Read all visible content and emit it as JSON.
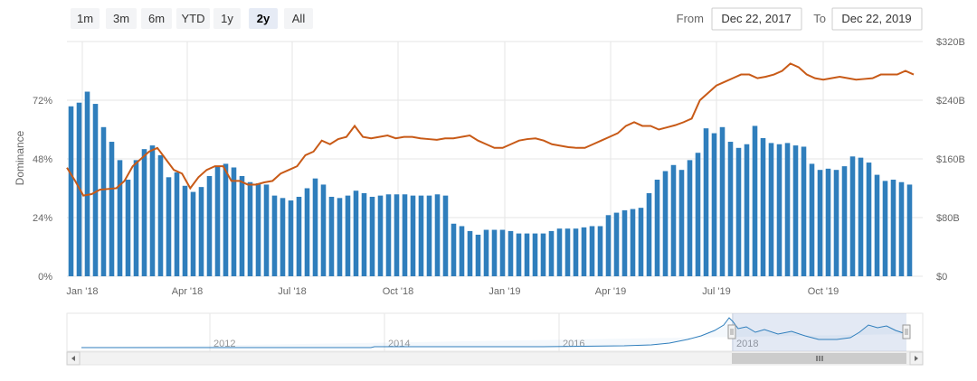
{
  "range_selector": {
    "buttons": [
      {
        "label": "1m",
        "active": false
      },
      {
        "label": "3m",
        "active": false
      },
      {
        "label": "6m",
        "active": false
      },
      {
        "label": "YTD",
        "active": false
      },
      {
        "label": "1y",
        "active": false
      },
      {
        "label": "2y",
        "active": true
      },
      {
        "label": "All",
        "active": false
      }
    ],
    "from_label": "From",
    "from_value": "Dec 22, 2017",
    "to_label": "To",
    "to_value": "Dec 22, 2019"
  },
  "chart_data": {
    "type": "bar",
    "ylabel": "Dominance",
    "x_ticks": [
      "Jan '18",
      "Apr '18",
      "Jul '18",
      "Oct '18",
      "Jan '19",
      "Apr '19",
      "Jul '19",
      "Oct '19"
    ],
    "y_left_ticks": [
      "0%",
      "24%",
      "48%",
      "72%"
    ],
    "y_right_ticks": [
      "$0",
      "$80B",
      "$160B",
      "$240B",
      "$320B"
    ],
    "ylim_left": [
      0,
      96
    ],
    "ylim_right": [
      0,
      320
    ],
    "series": [
      {
        "type": "bar",
        "axis": "left",
        "values": [
          69.5,
          71.0,
          75.5,
          70.5,
          61.0,
          55.0,
          47.5,
          39.5,
          47.5,
          52.0,
          53.5,
          49.5,
          40.5,
          42.5,
          37.0,
          34.5,
          36.5,
          41.0,
          45.0,
          46.0,
          44.5,
          41.0,
          38.5,
          38.0,
          37.5,
          33.0,
          32.0,
          31.0,
          32.5,
          36.0,
          40.0,
          37.5,
          32.5,
          32.0,
          33.0,
          35.0,
          34.0,
          32.5,
          33.0,
          33.5,
          33.5,
          33.5,
          33.0,
          33.0,
          33.0,
          33.5,
          33.0,
          21.5,
          20.5,
          18.5,
          17.0,
          19.0,
          19.0,
          19.0,
          18.5,
          17.5,
          17.5,
          17.5,
          17.5,
          18.5,
          19.5,
          19.5,
          19.5,
          20.0,
          20.5,
          20.5,
          25.0,
          26.0,
          27.0,
          27.5,
          28.0,
          34.0,
          39.5,
          43.0,
          45.5,
          43.5,
          47.5,
          50.5,
          60.5,
          58.5,
          61.0,
          55.0,
          52.5,
          54.0,
          61.5,
          56.5,
          54.5,
          54.0,
          54.5,
          53.5,
          53.0,
          46.0,
          43.5,
          44.0,
          43.5,
          45.0,
          49.0,
          48.5,
          46.5,
          41.5,
          39.0,
          39.5,
          38.5,
          37.5
        ]
      },
      {
        "type": "line",
        "axis": "right",
        "values": [
          148,
          130,
          110,
          112,
          118,
          119,
          120,
          130,
          150,
          160,
          170,
          175,
          160,
          145,
          140,
          120,
          135,
          145,
          150,
          150,
          130,
          130,
          125,
          125,
          128,
          130,
          140,
          145,
          150,
          165,
          170,
          185,
          180,
          187,
          190,
          205,
          190,
          188,
          190,
          192,
          188,
          190,
          190,
          188,
          187,
          186,
          188,
          188,
          190,
          192,
          185,
          180,
          175,
          175,
          180,
          185,
          187,
          188,
          185,
          180,
          178,
          176,
          175,
          175,
          180,
          185,
          190,
          195,
          205,
          210,
          205,
          205,
          200,
          203,
          206,
          210,
          215,
          240,
          250,
          260,
          265,
          270,
          275,
          275,
          270,
          272,
          275,
          280,
          290,
          285,
          275,
          270,
          268,
          270,
          272,
          270,
          268,
          269,
          270,
          275,
          275,
          275,
          280,
          275
        ]
      }
    ],
    "navigator": {
      "year_labels": [
        "2012",
        "2014",
        "2016",
        "2018"
      ]
    }
  }
}
